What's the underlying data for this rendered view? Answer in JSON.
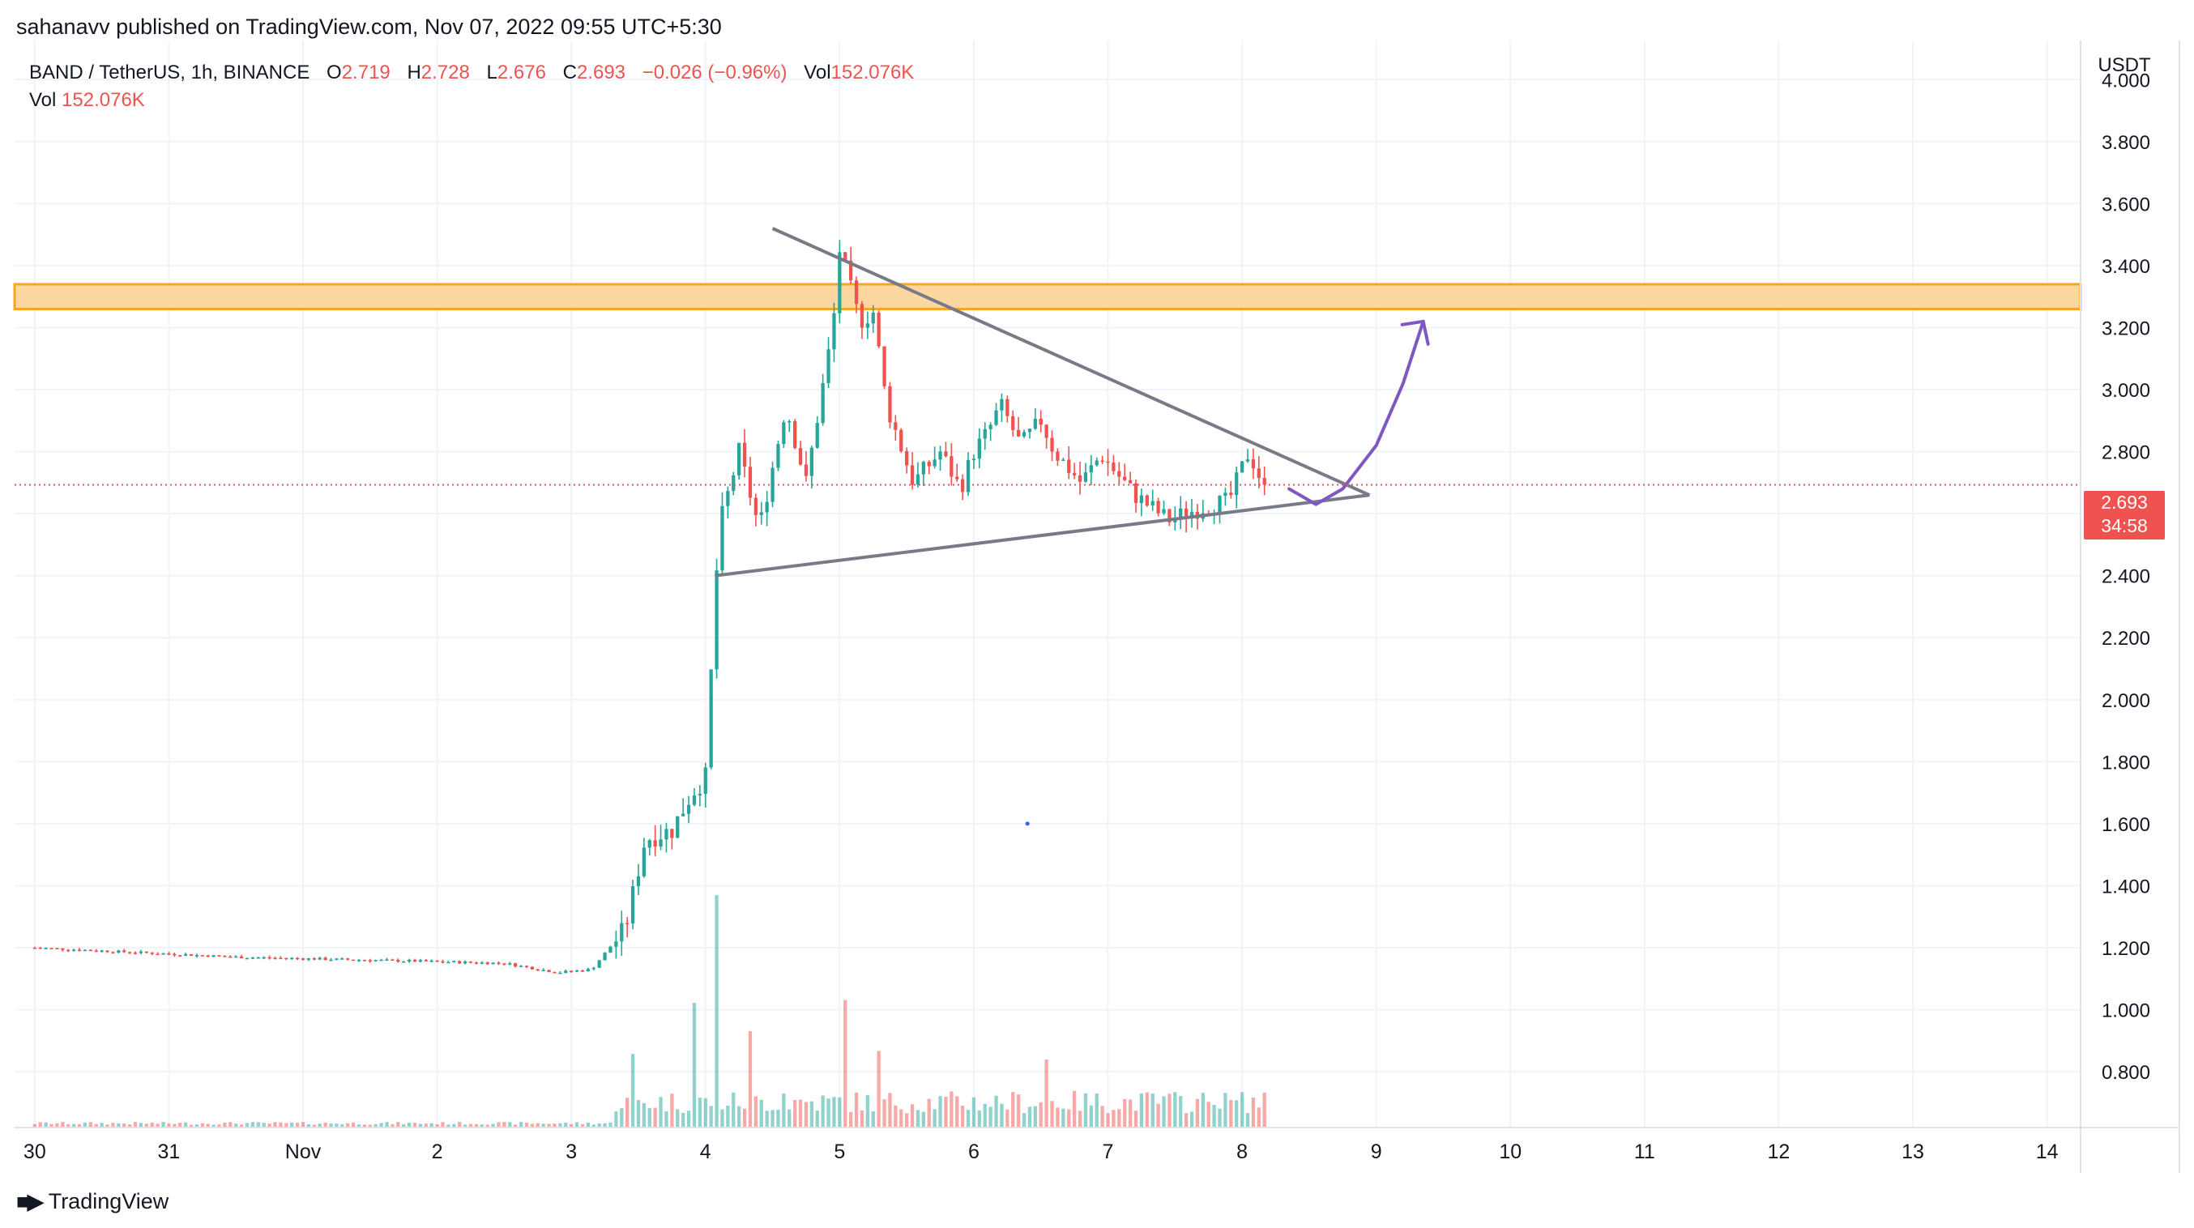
{
  "publisher_line": "sahanavv published on TradingView.com, Nov 07, 2022 09:55 UTC+5:30",
  "legend": {
    "symbol": "BAND / TetherUS, 1h, BINANCE",
    "open_label": "O",
    "open": "2.719",
    "high_label": "H",
    "high": "2.728",
    "low_label": "L",
    "low": "2.676",
    "close_label": "C",
    "close": "2.693",
    "change": "−0.026 (−0.96%)",
    "vol_label": "Vol",
    "vol": "152.076K",
    "row2_label": "Vol",
    "row2_value": "152.076K"
  },
  "price_badge": {
    "price": "2.693",
    "countdown": "34:58"
  },
  "brand": "TradingView",
  "colors": {
    "up": "#26a69a",
    "down": "#ef5350",
    "resistance_zone": "#fcd7a0",
    "zone_border": "#f5a623",
    "trendline": "#787b86",
    "projection": "#7e57c2"
  },
  "chart_data": {
    "type": "candlestick",
    "symbol": "BAND / TetherUS",
    "interval": "1h",
    "exchange": "BINANCE",
    "y_axis": {
      "unit": "USDT",
      "ticks": [
        "4.000",
        "3.800",
        "3.600",
        "3.400",
        "3.200",
        "3.000",
        "2.800",
        "2.400",
        "2.200",
        "2.000",
        "1.800",
        "1.600",
        "1.400",
        "1.200",
        "1.000",
        "0.800"
      ],
      "range": [
        0.62,
        4.1
      ]
    },
    "x_axis": {
      "labels": [
        "30",
        "31",
        "Nov",
        "2",
        "3",
        "4",
        "5",
        "6",
        "7",
        "8",
        "9",
        "10",
        "11",
        "12",
        "13",
        "14"
      ],
      "label_day_index": [
        0,
        1,
        2,
        3,
        4,
        5,
        6,
        7,
        8,
        9,
        10,
        11,
        12,
        13,
        14,
        15
      ],
      "range_days": [
        -0.15,
        15.25
      ]
    },
    "last_price": 2.693,
    "resistance_zone": [
      3.26,
      3.34
    ],
    "price_path": [
      [
        0.0,
        1.2
      ],
      [
        1.0,
        1.18
      ],
      [
        1.5,
        1.17
      ],
      [
        2.5,
        1.16
      ],
      [
        3.5,
        1.15
      ],
      [
        3.9,
        1.12
      ],
      [
        4.15,
        1.13
      ],
      [
        4.4,
        1.26
      ],
      [
        4.55,
        1.55
      ],
      [
        4.75,
        1.58
      ],
      [
        4.9,
        1.7
      ],
      [
        5.0,
        1.75
      ],
      [
        5.1,
        2.55
      ],
      [
        5.25,
        2.8
      ],
      [
        5.4,
        2.55
      ],
      [
        5.6,
        2.95
      ],
      [
        5.75,
        2.7
      ],
      [
        5.95,
        3.2
      ],
      [
        6.0,
        3.45
      ],
      [
        6.15,
        3.22
      ],
      [
        6.25,
        3.25
      ],
      [
        6.35,
        2.95
      ],
      [
        6.55,
        2.7
      ],
      [
        6.75,
        2.8
      ],
      [
        6.9,
        2.68
      ],
      [
        7.0,
        2.8
      ],
      [
        7.1,
        2.86
      ],
      [
        7.2,
        2.95
      ],
      [
        7.35,
        2.82
      ],
      [
        7.5,
        2.9
      ],
      [
        7.6,
        2.8
      ],
      [
        7.8,
        2.7
      ],
      [
        7.95,
        2.79
      ],
      [
        8.2,
        2.66
      ],
      [
        8.45,
        2.58
      ],
      [
        8.7,
        2.62
      ],
      [
        8.9,
        2.64
      ],
      [
        9.05,
        2.8
      ],
      [
        9.15,
        2.7
      ],
      [
        9.2,
        2.693
      ]
    ],
    "volume_peaks": [
      {
        "day": 4.45,
        "rel": 0.26
      },
      {
        "day": 4.9,
        "rel": 0.44
      },
      {
        "day": 5.1,
        "rel": 0.82
      },
      {
        "day": 5.35,
        "rel": 0.34
      },
      {
        "day": 5.6,
        "rel": 0.12
      },
      {
        "day": 6.05,
        "rel": 0.45
      },
      {
        "day": 6.3,
        "rel": 0.27
      },
      {
        "day": 7.55,
        "rel": 0.24
      },
      {
        "day": 8.35,
        "rel": 0.12
      },
      {
        "day": 8.8,
        "rel": 0.08
      },
      {
        "day": 9.2,
        "rel": 0.12
      }
    ],
    "drawings": {
      "triangle_upper": [
        [
          5.5,
          3.52
        ],
        [
          9.95,
          2.66
        ]
      ],
      "triangle_lower": [
        [
          5.07,
          2.4
        ],
        [
          9.95,
          2.66
        ]
      ],
      "projection_path": [
        [
          9.35,
          2.68
        ],
        [
          9.55,
          2.63
        ],
        [
          9.75,
          2.68
        ],
        [
          10.0,
          2.82
        ],
        [
          10.2,
          3.02
        ],
        [
          10.35,
          3.22
        ]
      ]
    }
  }
}
